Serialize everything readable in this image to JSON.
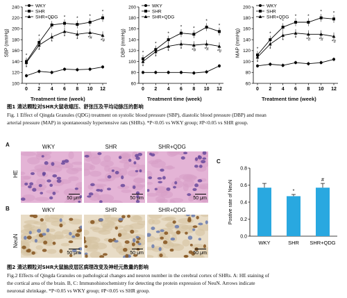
{
  "chart_data": [
    {
      "type": "line",
      "ylabel": "SBP (mmHg)",
      "xlabel": "Treatment time (week)",
      "x": [
        0,
        2,
        4,
        6,
        8,
        10,
        12
      ],
      "ylim": [
        100,
        240
      ],
      "yticks": [
        "100",
        "120",
        "140",
        "160",
        "180",
        "200",
        "220",
        "240"
      ],
      "series": [
        {
          "name": "WKY",
          "marker": "circle",
          "values": [
            114,
            122,
            120,
            126,
            125,
            126,
            130
          ]
        },
        {
          "name": "SHR",
          "marker": "square",
          "values": [
            140,
            175,
            207,
            210,
            208,
            212,
            220
          ]
        },
        {
          "name": "SHR+QDG",
          "marker": "triangle",
          "values": [
            138,
            170,
            185,
            195,
            190,
            193,
            188
          ]
        }
      ],
      "annotations": {
        "SHR": [
          "*",
          "*",
          "*",
          "*",
          "*",
          "*",
          "*"
        ],
        "SHR+QDG": [
          "*",
          "*",
          "*",
          "*",
          "*",
          "*#",
          "*#"
        ]
      }
    },
    {
      "type": "line",
      "ylabel": "DBP (mmHg)",
      "xlabel": "Treatment time (week)",
      "x": [
        0,
        2,
        4,
        6,
        8,
        10,
        12
      ],
      "ylim": [
        60,
        200
      ],
      "yticks": [
        "60",
        "80",
        "100",
        "120",
        "140",
        "160",
        "180",
        "200"
      ],
      "series": [
        {
          "name": "WKY",
          "marker": "circle",
          "values": [
            80,
            80,
            80,
            80,
            79,
            81,
            92
          ]
        },
        {
          "name": "SHR",
          "marker": "square",
          "values": [
            105,
            122,
            140,
            152,
            150,
            163,
            155
          ]
        },
        {
          "name": "SHR+QDG",
          "marker": "triangle",
          "values": [
            100,
            118,
            128,
            132,
            130,
            132,
            128
          ]
        }
      ],
      "annotations": {
        "SHR": [
          "*",
          "*",
          "*",
          "*",
          "*",
          "*",
          "*"
        ],
        "SHR+QDG": [
          "*",
          "*",
          "*",
          "*",
          "*#",
          "*#",
          "*#"
        ]
      }
    },
    {
      "type": "line",
      "ylabel": "MAP (mmHg)",
      "xlabel": "Treatment time (week)",
      "x": [
        0,
        2,
        4,
        6,
        8,
        10,
        12
      ],
      "ylim": [
        60,
        200
      ],
      "yticks": [
        "60",
        "80",
        "100",
        "120",
        "140",
        "160",
        "180",
        "200"
      ],
      "series": [
        {
          "name": "WKY",
          "marker": "circle",
          "values": [
            92,
            95,
            93,
            98,
            96,
            98,
            104
          ]
        },
        {
          "name": "SHR",
          "marker": "square",
          "values": [
            112,
            140,
            163,
            172,
            172,
            180,
            178
          ]
        },
        {
          "name": "SHR+QDG",
          "marker": "triangle",
          "values": [
            108,
            132,
            148,
            152,
            150,
            150,
            146
          ]
        }
      ],
      "annotations": {
        "SHR": [
          "*",
          "*",
          "*",
          "*",
          "*",
          "*",
          "*"
        ],
        "SHR+QDG": [
          "*",
          "*",
          "*",
          "*",
          "*#",
          "*#",
          "*#"
        ]
      }
    },
    {
      "type": "bar",
      "panel": "C",
      "ylabel": "Postive rate of NeuN",
      "categories": [
        "WKY",
        "SHR",
        "SHR+QDG"
      ],
      "values": [
        0.57,
        0.47,
        0.57
      ],
      "errors": [
        0.05,
        0.02,
        0.05
      ],
      "ylim": [
        0.0,
        0.8
      ],
      "yticks": [
        "0.0",
        "0.2",
        "0.4",
        "0.6",
        "0.8"
      ],
      "annotations": [
        "",
        "*",
        "#"
      ],
      "color": "#29a8e0"
    }
  ],
  "colors": {
    "series_line": "#000000",
    "bar": "#29a8e0",
    "he_stain": "#e4b4d6",
    "ihc_stain": "#c8a06a"
  },
  "fig1": {
    "title_zh": "图1  清达颗粒对SHR大鼠收缩压、舒张压及平均动脉压的影响",
    "caption_line1": "Fig. 1  Effect of Qingda Granules (QDG) treatment on systolic blood pressure (SBP), diastolic blood pressure (DBP) and mean",
    "caption_line2": "arterial pressure (MAP) in spontaneously hypertensive rats (SHRs). *P<0.05 vs WKY group; #P<0.05 vs SHR group."
  },
  "fig2": {
    "panels": {
      "a": "A",
      "b": "B",
      "c": "C"
    },
    "row_labels": {
      "he": "HE",
      "neun": "NeuN"
    },
    "col_heads": [
      "WKY",
      "SHR",
      "SHR+QDG"
    ],
    "scale_text": "50 μm",
    "title_zh": "图2  清达颗粒对SHR大鼠脑皮层区病理改变及神经元数量的影响",
    "caption_line1": "Fig.2  Effects of Qingda Granules on pathological changes and neuron number in the cerebral cortex of SHRs. A: HE staining of",
    "caption_line2": "the cortical area of the brain. B, C: Immunohistochemistry for detecting the protein expression of NeuN. Arrows indicate",
    "caption_line3": "neuronal shrinkage. *P<0.05 vs WKY group; #P<0.05 vs SHR group."
  }
}
